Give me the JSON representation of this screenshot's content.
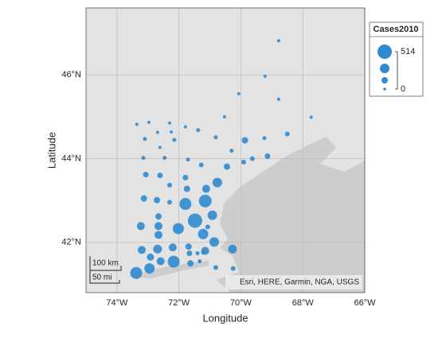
{
  "chart_data": {
    "type": "bubble",
    "xlabel": "Longitude",
    "ylabel": "Latitude",
    "xlim": [
      -75,
      -66
    ],
    "ylim": [
      40.8,
      47.6
    ],
    "xticks": [
      {
        "value": -74,
        "label": "74°W"
      },
      {
        "value": -72,
        "label": "72°W"
      },
      {
        "value": -70,
        "label": "70°W"
      },
      {
        "value": -68,
        "label": "68°W"
      },
      {
        "value": -66,
        "label": "66°W"
      }
    ],
    "yticks": [
      {
        "value": 42,
        "label": "42°N"
      },
      {
        "value": 44,
        "label": "44°N"
      },
      {
        "value": 46,
        "label": "46°N"
      }
    ],
    "grid": true,
    "color": "#2f8ace",
    "size_legend_title": "Cases2010",
    "size_limits": [
      0,
      514
    ],
    "attribution": "Esri, HERE, Garmin, NGA, USGS",
    "scale_bar": [
      "100 km",
      "50 mi"
    ],
    "x": [
      -68.78,
      -69.22,
      -68.78,
      -70.07,
      -70.53,
      -67.73,
      -73.36,
      -72.97,
      -72.3,
      -71.79,
      -73.1,
      -72.69,
      -72.25,
      -71.38,
      -70.81,
      -69.87,
      -69.24,
      -68.5,
      -72.61,
      -72.15,
      -70.3,
      -73.15,
      -72.46,
      -71.71,
      -69.63,
      -69.91,
      -69.14,
      -70.45,
      -71.28,
      -73.07,
      -72.61,
      -71.79,
      -72.3,
      -70.76,
      -71.12,
      -71.74,
      -73.13,
      -72.71,
      -72.3,
      -71.79,
      -71.15,
      -70.92,
      -71.48,
      -72.66,
      -73.23,
      -72.66,
      -72.02,
      -71.22,
      -71.07,
      -72.66,
      -70.86,
      -73.2,
      -72.69,
      -72.2,
      -71.69,
      -71.66,
      -71.15,
      -70.27,
      -71.4,
      -71.33,
      -71.22,
      -72.92,
      -72.59,
      -72.17,
      -71.63,
      -70.81,
      -70.25,
      -72.95,
      -73.38
    ],
    "values": [
      46.82,
      45.97,
      45.42,
      45.55,
      45.0,
      44.99,
      44.82,
      44.87,
      44.85,
      44.76,
      44.47,
      44.63,
      44.64,
      44.68,
      44.51,
      44.44,
      44.49,
      44.59,
      44.27,
      44.45,
      44.19,
      44.02,
      44.02,
      43.98,
      44.0,
      43.92,
      44.06,
      43.81,
      43.85,
      43.62,
      43.6,
      43.55,
      43.37,
      43.43,
      43.28,
      43.28,
      43.05,
      43.01,
      42.96,
      42.92,
      42.99,
      42.65,
      42.52,
      42.62,
      42.39,
      42.39,
      42.33,
      42.2,
      42.37,
      42.18,
      42.01,
      41.82,
      41.84,
      41.88,
      41.9,
      41.74,
      41.8,
      41.84,
      41.74,
      41.55,
      41.76,
      41.65,
      41.55,
      41.54,
      41.5,
      41.4,
      41.38,
      41.38,
      41.27
    ],
    "sizes": [
      34,
      34,
      34,
      34,
      34,
      34,
      34,
      34,
      34,
      34,
      69,
      34,
      34,
      69,
      69,
      171,
      69,
      103,
      34,
      69,
      69,
      69,
      69,
      69,
      103,
      103,
      137,
      171,
      103,
      137,
      137,
      137,
      103,
      308,
      240,
      171,
      171,
      171,
      103,
      411,
      445,
      308,
      514,
      171,
      240,
      240,
      377,
      343,
      103,
      240,
      308,
      240,
      274,
      240,
      171,
      137,
      240,
      274,
      69,
      69,
      69,
      206,
      240,
      411,
      171,
      103,
      103,
      343,
      411
    ]
  }
}
